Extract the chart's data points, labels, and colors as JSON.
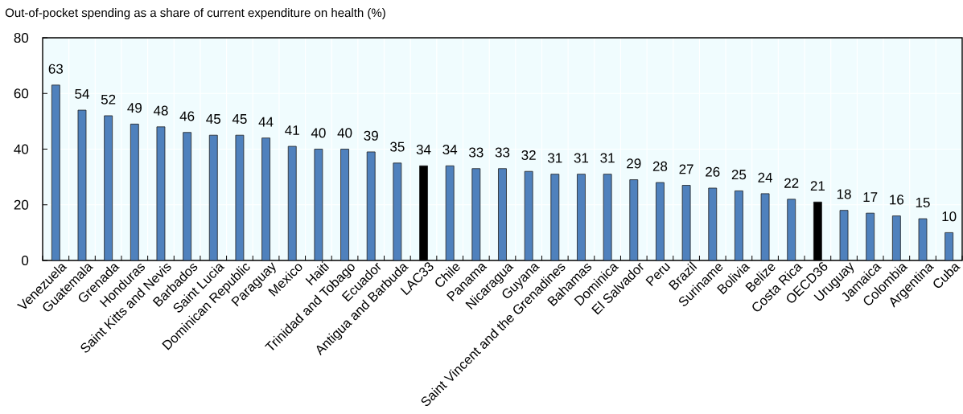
{
  "chart_data": {
    "type": "bar",
    "title": "Out-of-pocket spending as a share of current expenditure on health (%)",
    "categories": [
      "Venezuela",
      "Guatemala",
      "Grenada",
      "Honduras",
      "Saint Kitts and Nevis",
      "Barbados",
      "Saint Lucia",
      "Dominican Republic",
      "Paraguay",
      "Mexico",
      "Haiti",
      "Trinidad and Tobago",
      "Ecuador",
      "Antigua and Barbuda",
      "LAC33",
      "Chile",
      "Panama",
      "Nicaragua",
      "Guyana",
      "Saint Vincent and the Grenadines",
      "Bahamas",
      "Dominica",
      "El Salvador",
      "Peru",
      "Brazil",
      "Suriname",
      "Bolivia",
      "Belize",
      "Costa Rica",
      "OECD36",
      "Uruguay",
      "Jamaica",
      "Colombia",
      "Argentina",
      "Cuba"
    ],
    "values": [
      63,
      54,
      52,
      49,
      48,
      46,
      45,
      45,
      44,
      41,
      40,
      40,
      39,
      35,
      34,
      34,
      33,
      33,
      32,
      31,
      31,
      31,
      29,
      28,
      27,
      26,
      25,
      24,
      22,
      21,
      18,
      17,
      16,
      15,
      10
    ],
    "colors": [
      "#4f81bd",
      "#4f81bd",
      "#4f81bd",
      "#4f81bd",
      "#4f81bd",
      "#4f81bd",
      "#4f81bd",
      "#4f81bd",
      "#4f81bd",
      "#4f81bd",
      "#4f81bd",
      "#4f81bd",
      "#4f81bd",
      "#4f81bd",
      "#000000",
      "#4f81bd",
      "#4f81bd",
      "#4f81bd",
      "#4f81bd",
      "#4f81bd",
      "#4f81bd",
      "#4f81bd",
      "#4f81bd",
      "#4f81bd",
      "#4f81bd",
      "#4f81bd",
      "#4f81bd",
      "#4f81bd",
      "#4f81bd",
      "#000000",
      "#4f81bd",
      "#4f81bd",
      "#4f81bd",
      "#4f81bd",
      "#4f81bd"
    ],
    "ylim": [
      0,
      80
    ],
    "yticks": [
      0,
      20,
      40,
      60,
      80
    ],
    "grid": true,
    "data_labels": true
  }
}
